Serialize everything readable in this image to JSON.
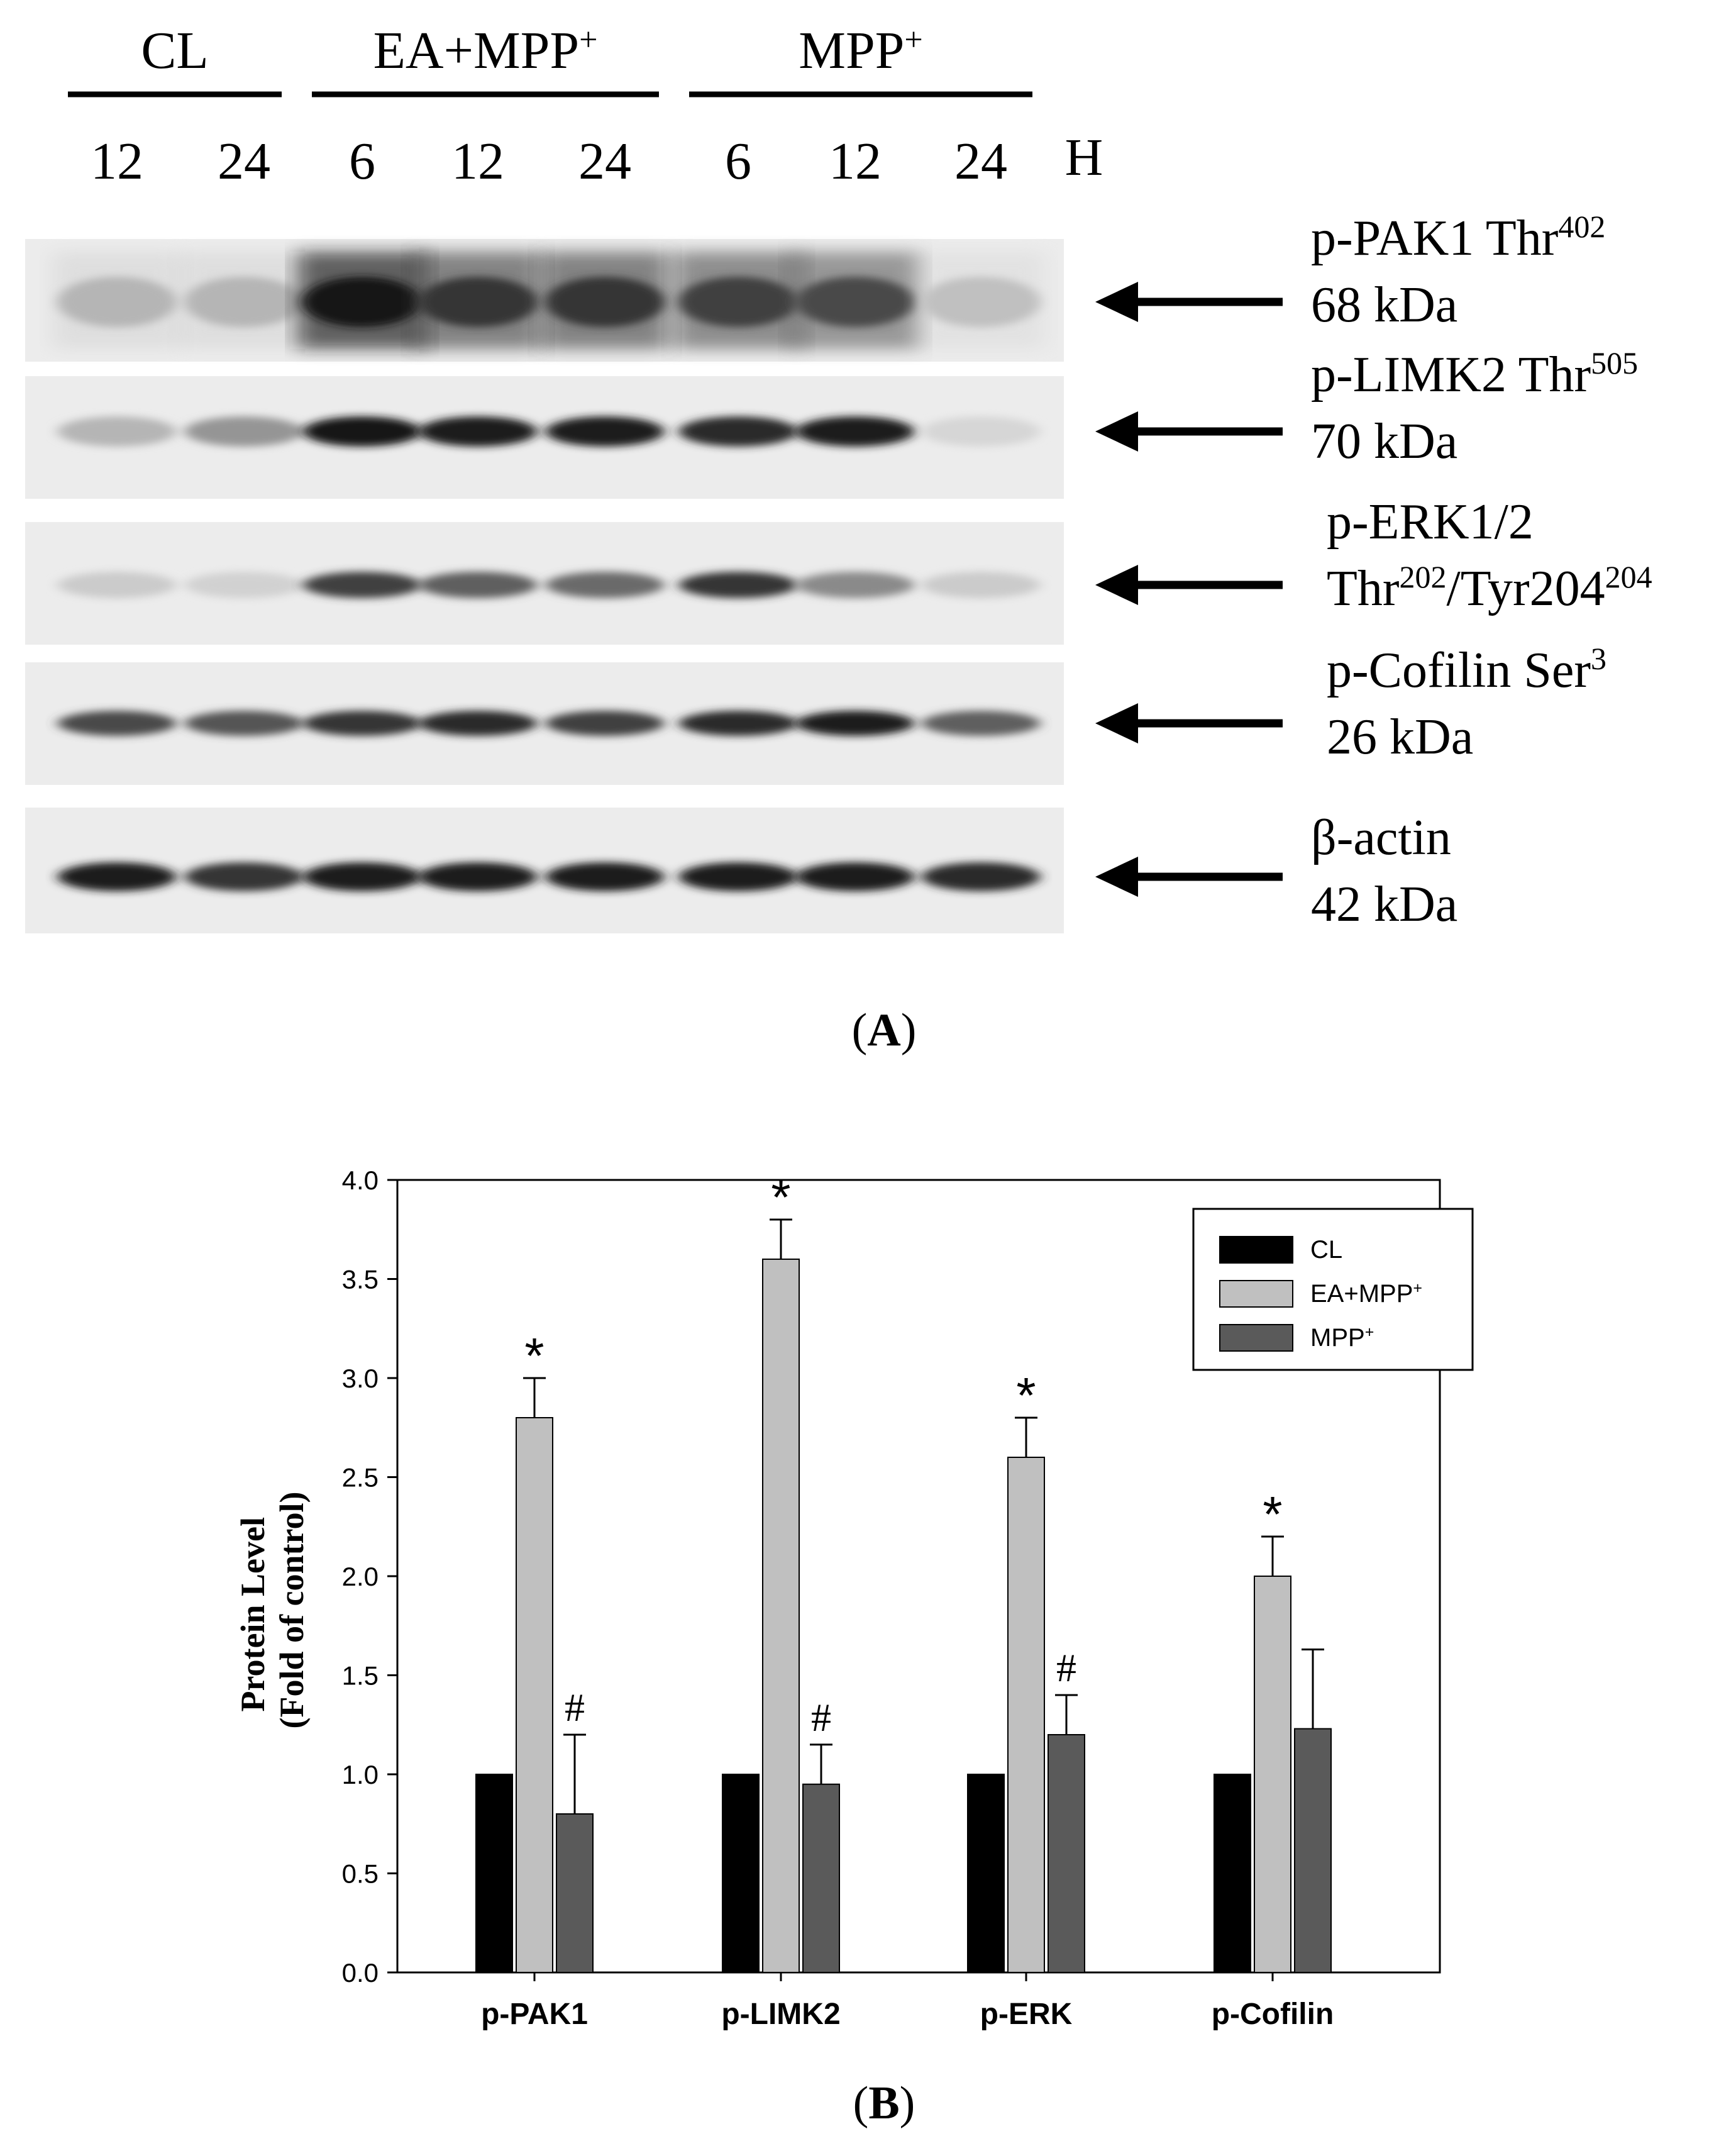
{
  "panel_a": {
    "groups": [
      {
        "label": "CL",
        "sup": ""
      },
      {
        "label": "EA+MPP",
        "sup": "+"
      },
      {
        "label": "MPP",
        "sup": "+"
      }
    ],
    "time_points": [
      "12",
      "24",
      "6",
      "12",
      "24",
      "6",
      "12",
      "24"
    ],
    "time_unit": "H",
    "blots": [
      {
        "line1": "p-PAK1 Thr",
        "line1_sup": "402",
        "line2": "68 kDa",
        "line2_sup": "",
        "line2_mid": "",
        "line2_sup2": "",
        "intensity": [
          0.25,
          0.25,
          1.0,
          0.85,
          0.85,
          0.8,
          0.75,
          0.2
        ]
      },
      {
        "line1": "p-LIMK2 Thr",
        "line1_sup": "505",
        "line2": "70 kDa",
        "line2_sup": "",
        "line2_mid": "",
        "line2_sup2": "",
        "intensity": [
          0.25,
          0.4,
          1.0,
          0.95,
          0.95,
          0.9,
          0.95,
          0.1
        ]
      },
      {
        "line1": "p-ERK1/2",
        "line1_sup": "",
        "line2": "Thr",
        "line2_sup": "202",
        "line2_mid": "/Tyr204",
        "line2_sup2": "204",
        "intensity": [
          0.15,
          0.12,
          0.8,
          0.65,
          0.6,
          0.85,
          0.45,
          0.15
        ]
      },
      {
        "line1": "p-Cofilin Ser",
        "line1_sup": "3",
        "line2": "26 kDa",
        "line2_sup": "",
        "line2_mid": "",
        "line2_sup2": "",
        "intensity": [
          0.75,
          0.7,
          0.85,
          0.9,
          0.8,
          0.9,
          0.95,
          0.65
        ]
      },
      {
        "line1": "β-actin",
        "line1_sup": "",
        "line2": "42 kDa",
        "line2_sup": "",
        "line2_mid": "",
        "line2_sup2": "",
        "intensity": [
          0.95,
          0.85,
          0.95,
          0.95,
          0.95,
          0.95,
          0.95,
          0.9
        ]
      }
    ],
    "panel_label": "A"
  },
  "chart_data": {
    "type": "bar",
    "categories": [
      "p-PAK1",
      "p-LIMK2",
      "p-ERK",
      "p-Cofilin"
    ],
    "series": [
      {
        "name": "CL",
        "sup": "",
        "color": "#000000",
        "values": [
          1.0,
          1.0,
          1.0,
          1.0
        ],
        "errors": [
          0,
          0,
          0,
          0
        ],
        "marks": [
          "",
          "",
          "",
          ""
        ]
      },
      {
        "name": "EA+MPP",
        "sup": "+",
        "color": "#c0c0c0",
        "values": [
          2.8,
          3.6,
          2.6,
          2.0
        ],
        "errors": [
          0.2,
          0.2,
          0.2,
          0.2
        ],
        "marks": [
          "*",
          "*",
          "*",
          "*"
        ]
      },
      {
        "name": "MPP",
        "sup": "+",
        "color": "#5a5a5a",
        "values": [
          0.8,
          0.95,
          1.2,
          1.23
        ],
        "errors": [
          0.4,
          0.2,
          0.2,
          0.4
        ],
        "marks": [
          "#",
          "#",
          "#",
          ""
        ]
      }
    ],
    "ylabel_line1": "Protein Level",
    "ylabel_line2": "(Fold of control)",
    "ylim": [
      0,
      4
    ],
    "yticks": [
      "0.0",
      "0.5",
      "1.0",
      "1.5",
      "2.0",
      "2.5",
      "3.0",
      "3.5",
      "4.0"
    ],
    "grid": false,
    "legend_position": "top-right",
    "panel_label": "B"
  }
}
